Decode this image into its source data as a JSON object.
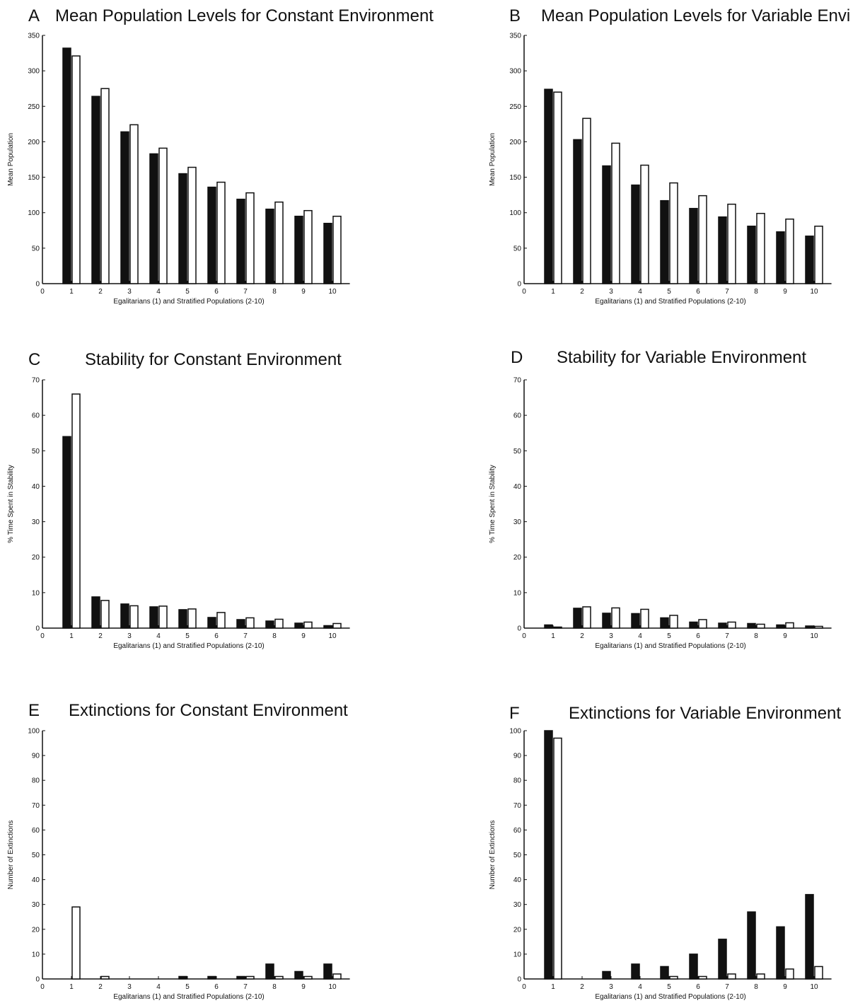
{
  "colors": {
    "series_filled": "#111111",
    "series_open": "#ffffff",
    "axis": "#111111"
  },
  "chart_data": [
    {
      "panel": "A",
      "type": "bar",
      "title": "Mean Population Levels for Constant Environment",
      "xlabel": "Egalitarians (1) and Stratified Populations (2-10)",
      "ylabel": "Mean Population",
      "categories": [
        "1",
        "2",
        "3",
        "4",
        "5",
        "6",
        "7",
        "8",
        "9",
        "10"
      ],
      "xticks": [
        "0",
        "1",
        "2",
        "3",
        "4",
        "5",
        "6",
        "7",
        "8",
        "9",
        "10"
      ],
      "ylim": [
        0,
        350
      ],
      "yticks": [
        0,
        50,
        100,
        150,
        200,
        250,
        300,
        350
      ],
      "series": [
        {
          "style": "filled",
          "values": [
            332,
            264,
            214,
            183,
            155,
            136,
            119,
            105,
            95,
            85
          ]
        },
        {
          "style": "open",
          "values": [
            321,
            275,
            224,
            191,
            164,
            143,
            128,
            115,
            103,
            95
          ]
        }
      ]
    },
    {
      "panel": "B",
      "type": "bar",
      "title": "Mean Population Levels for Variable Envi",
      "xlabel": "Egalitarians (1) and Stratified Populations (2-10)",
      "ylabel": "Mean Population",
      "categories": [
        "1",
        "2",
        "3",
        "4",
        "5",
        "6",
        "7",
        "8",
        "9",
        "10"
      ],
      "xticks": [
        "0",
        "1",
        "2",
        "3",
        "4",
        "5",
        "6",
        "7",
        "8",
        "9",
        "10"
      ],
      "ylim": [
        0,
        350
      ],
      "yticks": [
        0,
        50,
        100,
        150,
        200,
        250,
        300,
        350
      ],
      "series": [
        {
          "style": "filled",
          "values": [
            274,
            203,
            166,
            139,
            117,
            106,
            94,
            81,
            73,
            67
          ]
        },
        {
          "style": "open",
          "values": [
            270,
            233,
            198,
            167,
            142,
            124,
            112,
            99,
            91,
            81
          ]
        }
      ]
    },
    {
      "panel": "C",
      "type": "bar",
      "title": "Stability for Constant Environment",
      "xlabel": "Egalitarians (1) and Stratified Populations (2-10)",
      "ylabel": "% Time Spent in Stability",
      "categories": [
        "1",
        "2",
        "3",
        "4",
        "5",
        "6",
        "7",
        "8",
        "9",
        "10"
      ],
      "xticks": [
        "0",
        "1",
        "2",
        "3",
        "4",
        "5",
        "6",
        "7",
        "8",
        "9",
        "10"
      ],
      "ylim": [
        0,
        70
      ],
      "yticks": [
        0,
        10,
        20,
        30,
        40,
        50,
        60,
        70
      ],
      "series": [
        {
          "style": "filled",
          "values": [
            54,
            8.8,
            6.8,
            6,
            5.2,
            3,
            2.4,
            2,
            1.4,
            0.7
          ]
        },
        {
          "style": "open",
          "values": [
            66,
            7.8,
            6.3,
            6.2,
            5.4,
            4.4,
            2.9,
            2.5,
            1.7,
            1.3
          ]
        }
      ]
    },
    {
      "panel": "D",
      "type": "bar",
      "title": "Stability for Variable Environment",
      "xlabel": "Egalitarians (1) and Stratified Populations (2-10)",
      "ylabel": "% Time Spent in Stability",
      "categories": [
        "1",
        "2",
        "3",
        "4",
        "5",
        "6",
        "7",
        "8",
        "9",
        "10"
      ],
      "xticks": [
        "0",
        "1",
        "2",
        "3",
        "4",
        "5",
        "6",
        "7",
        "8",
        "9",
        "10"
      ],
      "ylim": [
        0,
        70
      ],
      "yticks": [
        0,
        10,
        20,
        30,
        40,
        50,
        60,
        70
      ],
      "series": [
        {
          "style": "filled",
          "values": [
            0.9,
            5.6,
            4.2,
            4.1,
            2.9,
            1.7,
            1.4,
            1.3,
            0.9,
            0.6
          ]
        },
        {
          "style": "open",
          "values": [
            0.3,
            6,
            5.7,
            5.3,
            3.6,
            2.4,
            1.7,
            1.1,
            1.5,
            0.5
          ]
        }
      ]
    },
    {
      "panel": "E",
      "type": "bar",
      "title": "Extinctions for Constant Environment",
      "xlabel": "Egalitarians (1) and Stratified Populations (2-10)",
      "ylabel": "Number of Extinctions",
      "categories": [
        "1",
        "2",
        "3",
        "4",
        "5",
        "6",
        "7",
        "8",
        "9",
        "10"
      ],
      "xticks": [
        "0",
        "1",
        "2",
        "3",
        "4",
        "5",
        "6",
        "7",
        "8",
        "9",
        "10"
      ],
      "ylim": [
        0,
        100
      ],
      "yticks": [
        0,
        10,
        20,
        30,
        40,
        50,
        60,
        70,
        80,
        90,
        100
      ],
      "series": [
        {
          "style": "filled",
          "values": [
            0,
            0,
            0,
            0,
            1,
            1,
            1,
            6,
            3,
            6
          ]
        },
        {
          "style": "open",
          "values": [
            29,
            1,
            0,
            0,
            0,
            0,
            1,
            1,
            1,
            2
          ]
        }
      ]
    },
    {
      "panel": "F",
      "type": "bar",
      "title": "Extinctions for Variable Environment",
      "xlabel": "Egalitarians (1) and Stratified Populations (2-10)",
      "ylabel": "Number of Extinctions",
      "categories": [
        "1",
        "2",
        "3",
        "4",
        "5",
        "6",
        "7",
        "8",
        "9",
        "10"
      ],
      "xticks": [
        "0",
        "1",
        "2",
        "3",
        "4",
        "5",
        "6",
        "7",
        "8",
        "9",
        "10"
      ],
      "ylim": [
        0,
        100
      ],
      "yticks": [
        0,
        10,
        20,
        30,
        40,
        50,
        60,
        70,
        80,
        90,
        100
      ],
      "series": [
        {
          "style": "filled",
          "values": [
            100,
            0,
            3,
            6,
            5,
            10,
            16,
            27,
            21,
            34
          ]
        },
        {
          "style": "open",
          "values": [
            97,
            0,
            0,
            0,
            1,
            1,
            2,
            2,
            4,
            5
          ]
        }
      ]
    }
  ]
}
